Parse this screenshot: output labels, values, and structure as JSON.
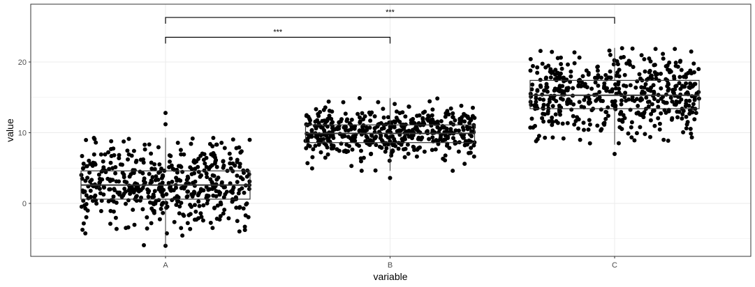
{
  "chart_data": {
    "type": "boxplot",
    "xlabel": "variable",
    "ylabel": "value",
    "categories": [
      "A",
      "B",
      "C"
    ],
    "ylim": [
      -7.3,
      24.9
    ],
    "yticks": [
      0,
      10,
      20
    ],
    "ytick_labels": [
      "0",
      "10",
      "20"
    ],
    "grid": true,
    "boxes": [
      {
        "category": "A",
        "min": -6.0,
        "q1": 0.6,
        "median": 2.6,
        "q3": 4.6,
        "max": 9.3
      },
      {
        "category": "B",
        "min": 4.6,
        "q1": 8.6,
        "median": 9.9,
        "q3": 11.1,
        "max": 14.9
      },
      {
        "category": "C",
        "min": 8.3,
        "q1": 13.4,
        "median": 15.3,
        "q3": 17.4,
        "max": 22.0
      }
    ],
    "outliers": [
      {
        "category": "A",
        "values": [
          12.8,
          11.2,
          -6.0
        ]
      },
      {
        "category": "B",
        "values": [
          3.6
        ]
      },
      {
        "category": "C",
        "values": [
          7.0
        ]
      }
    ],
    "points_per_group": 500,
    "point_color": "#000000",
    "comparisons": [
      {
        "group1": "A",
        "group2": "B",
        "label": "***",
        "y": 23.5
      },
      {
        "group1": "A",
        "group2": "C",
        "label": "***",
        "y": 26.3
      }
    ]
  }
}
